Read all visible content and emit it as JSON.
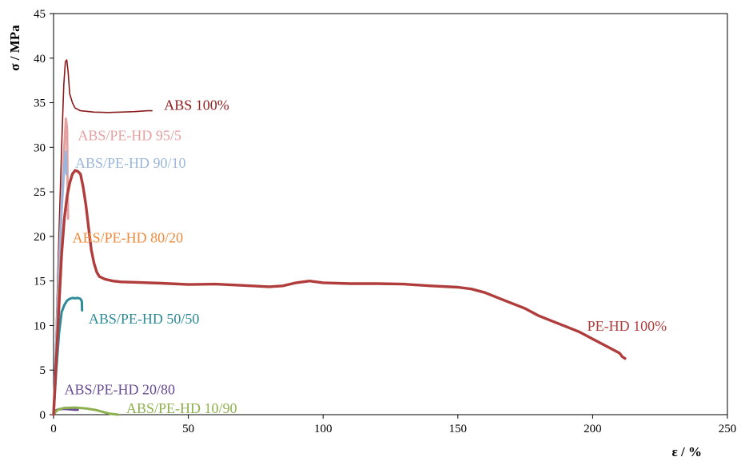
{
  "chart_data": {
    "type": "line",
    "xlabel": "ε / %",
    "ylabel": "σ / MPa",
    "xlim": [
      0,
      250
    ],
    "ylim": [
      0,
      45
    ],
    "xticks": [
      0,
      50,
      100,
      150,
      200,
      250
    ],
    "yticks": [
      0,
      5,
      10,
      15,
      20,
      25,
      30,
      35,
      40,
      45
    ],
    "grid": false,
    "series": [
      {
        "name": "ABS 100%",
        "color": "#8b1a1a",
        "width": 1.6,
        "points": [
          [
            0,
            0
          ],
          [
            1,
            10
          ],
          [
            2,
            20
          ],
          [
            3,
            30
          ],
          [
            3.8,
            37
          ],
          [
            4.4,
            39.6
          ],
          [
            4.9,
            39.8
          ],
          [
            5.4,
            38.5
          ],
          [
            6,
            36
          ],
          [
            7,
            35
          ],
          [
            8,
            34.4
          ],
          [
            10,
            34.1
          ],
          [
            15,
            33.95
          ],
          [
            20,
            33.9
          ],
          [
            25,
            33.95
          ],
          [
            30,
            34
          ],
          [
            35,
            34.1
          ],
          [
            36.5,
            34.1
          ]
        ]
      },
      {
        "name": "ABS/PE-HD 95/5",
        "color": "#e6a0a0",
        "width": 3,
        "points": [
          [
            0,
            0
          ],
          [
            1,
            8
          ],
          [
            2,
            16
          ],
          [
            3,
            24
          ],
          [
            4,
            30
          ],
          [
            4.6,
            33.2
          ],
          [
            5,
            32
          ],
          [
            5.2,
            26
          ],
          [
            5.4,
            22
          ]
        ]
      },
      {
        "name": "ABS/PE-HD 90/10",
        "color": "#9ab7db",
        "width": 3,
        "points": [
          [
            0,
            0
          ],
          [
            1,
            8
          ],
          [
            2,
            16
          ],
          [
            3,
            23
          ],
          [
            4,
            28
          ],
          [
            4.6,
            29.5
          ],
          [
            4.8,
            27
          ]
        ]
      },
      {
        "name": "ABS/PE-HD 80/20",
        "color": "#f08a3c",
        "width": 2,
        "points": [
          [
            0,
            0
          ],
          [
            1,
            7
          ],
          [
            2,
            14
          ],
          [
            3,
            19
          ],
          [
            3.3,
            20
          ]
        ]
      },
      {
        "name": "ABS/PE-HD 50/50",
        "color": "#2e8b9a",
        "width": 3,
        "points": [
          [
            0,
            0
          ],
          [
            1,
            5
          ],
          [
            2,
            9
          ],
          [
            3,
            11.5
          ],
          [
            4,
            12.3
          ],
          [
            5,
            12.8
          ],
          [
            6,
            13
          ],
          [
            7,
            13.1
          ],
          [
            8,
            13.05
          ],
          [
            9,
            13.1
          ],
          [
            10,
            13
          ],
          [
            10.5,
            12.7
          ],
          [
            10.6,
            11.7
          ]
        ]
      },
      {
        "name": "ABS/PE-HD 20/80",
        "color": "#6a4c93",
        "width": 3,
        "points": [
          [
            0,
            0
          ],
          [
            0.5,
            0.3
          ],
          [
            1,
            0.5
          ],
          [
            2,
            0.6
          ],
          [
            4,
            0.65
          ],
          [
            6,
            0.6
          ],
          [
            8,
            0.55
          ],
          [
            9,
            0.55
          ]
        ]
      },
      {
        "name": "ABS/PE-HD 10/90",
        "color": "#8db04e",
        "width": 3,
        "points": [
          [
            0,
            0
          ],
          [
            1,
            0.4
          ],
          [
            2,
            0.6
          ],
          [
            4,
            0.75
          ],
          [
            8,
            0.8
          ],
          [
            12,
            0.7
          ],
          [
            16,
            0.5
          ],
          [
            19,
            0.25
          ],
          [
            21,
            0.1
          ],
          [
            24,
            0
          ]
        ]
      },
      {
        "name": "PE-HD 100%",
        "color": "#b03c3c",
        "width": 3.4,
        "points": [
          [
            0,
            0
          ],
          [
            1,
            6
          ],
          [
            2,
            12
          ],
          [
            3,
            18
          ],
          [
            4,
            22
          ],
          [
            5,
            24.5
          ],
          [
            6,
            26
          ],
          [
            7,
            27
          ],
          [
            8,
            27.4
          ],
          [
            9,
            27.3
          ],
          [
            10,
            27
          ],
          [
            11,
            25.5
          ],
          [
            12,
            23.5
          ],
          [
            13,
            21
          ],
          [
            14,
            18.5
          ],
          [
            15,
            17
          ],
          [
            16,
            16
          ],
          [
            17,
            15.5
          ],
          [
            19,
            15.2
          ],
          [
            22,
            15
          ],
          [
            25,
            14.9
          ],
          [
            30,
            14.85
          ],
          [
            40,
            14.75
          ],
          [
            50,
            14.6
          ],
          [
            60,
            14.65
          ],
          [
            70,
            14.5
          ],
          [
            80,
            14.35
          ],
          [
            85,
            14.45
          ],
          [
            90,
            14.8
          ],
          [
            95,
            15
          ],
          [
            100,
            14.8
          ],
          [
            110,
            14.7
          ],
          [
            120,
            14.7
          ],
          [
            130,
            14.65
          ],
          [
            140,
            14.45
          ],
          [
            150,
            14.3
          ],
          [
            155,
            14.1
          ],
          [
            160,
            13.7
          ],
          [
            165,
            13.1
          ],
          [
            170,
            12.5
          ],
          [
            175,
            11.9
          ],
          [
            180,
            11.1
          ],
          [
            185,
            10.5
          ],
          [
            190,
            9.9
          ],
          [
            195,
            9.3
          ],
          [
            200,
            8.5
          ],
          [
            205,
            7.7
          ],
          [
            210,
            6.9
          ],
          [
            211,
            6.5
          ],
          [
            212,
            6.3
          ]
        ]
      }
    ],
    "labels": [
      {
        "text": "ABS 100%",
        "x": 41,
        "y": 34.2,
        "color": "#8b1a1a"
      },
      {
        "text": "ABS/PE-HD 95/5",
        "x": 9,
        "y": 30.8,
        "color": "#e6a0a0"
      },
      {
        "text": "ABS/PE-HD 90/10",
        "x": 8,
        "y": 27.7,
        "color": "#9ab7db"
      },
      {
        "text": "ABS/PE-HD 80/20",
        "x": 7,
        "y": 19.3,
        "color": "#f08a3c"
      },
      {
        "text": "ABS/PE-HD 50/50",
        "x": 13,
        "y": 10.2,
        "color": "#2e8b9a"
      },
      {
        "text": "ABS/PE-HD 20/80",
        "x": 4,
        "y": 2.3,
        "color": "#6a4c93"
      },
      {
        "text": "ABS/PE-HD 10/90",
        "x": 27,
        "y": 0.2,
        "color": "#8db04e"
      },
      {
        "text": "PE-HD 100%",
        "x": 198,
        "y": 9.4,
        "color": "#b03c3c"
      }
    ]
  }
}
